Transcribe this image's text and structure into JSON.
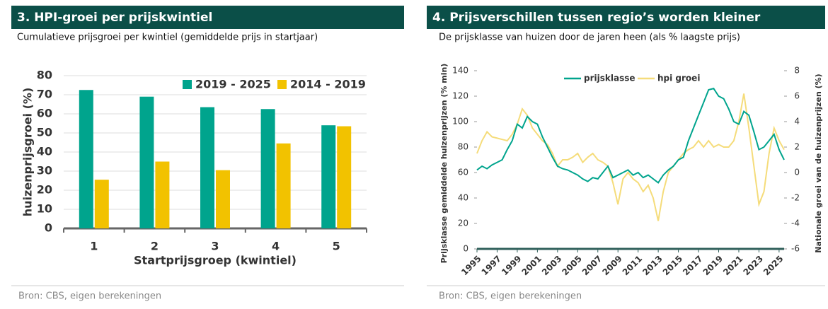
{
  "chart_data": [
    {
      "type": "bar",
      "title": "3. HPI-groei per prijskwintiel",
      "subtitle": "Cumulatieve prijsgroei per kwintiel (gemiddelde prijs in startjaar)",
      "source": "Bron: CBS, eigen berekeningen",
      "xlabel": "Startprijsgroep (kwintiel)",
      "ylabel": "huizenprijsgroei (%)",
      "categories": [
        "1",
        "2",
        "3",
        "4",
        "5"
      ],
      "series": [
        {
          "name": "2019 - 2025",
          "color": "#00a48d",
          "values": [
            72.5,
            69,
            63.5,
            62.5,
            54
          ]
        },
        {
          "name": "2014 - 2019",
          "color": "#f2c200",
          "values": [
            25.5,
            35,
            30.5,
            44.5,
            53.5
          ]
        }
      ],
      "ylim": [
        0,
        80
      ],
      "yticks": [
        0,
        10,
        20,
        30,
        40,
        50,
        60,
        70,
        80
      ],
      "grid": true,
      "legend": "top-right"
    },
    {
      "type": "line",
      "title": "4.  Prijsverschillen tussen regio’s worden kleiner",
      "subtitle": "De prijsklasse van huizen door de jaren heen (als % laagste prijs)",
      "source": "Bron: CBS, eigen berekeningen",
      "ylabel": "Prijsklasse gemiddelde huizenprijzen (% min)",
      "y2label": "Nationale groei van de huizenprijzen (%)",
      "x": [
        1995,
        1995.5,
        1996,
        1996.5,
        1997,
        1997.5,
        1998,
        1998.5,
        1999,
        1999.5,
        2000,
        2000.5,
        2001,
        2001.5,
        2002,
        2002.5,
        2003,
        2003.5,
        2004,
        2004.5,
        2005,
        2005.5,
        2006,
        2006.5,
        2007,
        2007.5,
        2008,
        2008.5,
        2009,
        2009.5,
        2010,
        2010.5,
        2011,
        2011.5,
        2012,
        2012.5,
        2013,
        2013.5,
        2014,
        2014.5,
        2015,
        2015.5,
        2016,
        2016.5,
        2017,
        2017.5,
        2018,
        2018.5,
        2019,
        2019.5,
        2020,
        2020.5,
        2021,
        2021.5,
        2022,
        2022.5,
        2023,
        2023.5,
        2024,
        2024.5,
        2025,
        2025.5
      ],
      "series": [
        {
          "name": "prijsklasse",
          "color": "#00a48d",
          "values": [
            62,
            65,
            63,
            66,
            68,
            70,
            78,
            85,
            98,
            95,
            104,
            100,
            98,
            88,
            80,
            72,
            65,
            63,
            62,
            60,
            58,
            55,
            53,
            56,
            55,
            60,
            65,
            56,
            58,
            60,
            62,
            58,
            60,
            56,
            58,
            55,
            52,
            58,
            62,
            65,
            70,
            72,
            85,
            95,
            105,
            115,
            125,
            126,
            120,
            118,
            110,
            100,
            98,
            108,
            105,
            92,
            78,
            80,
            85,
            90,
            78,
            70
          ]
        },
        {
          "name": "hpi groei",
          "color": "#f5dc7a",
          "axis": "y2",
          "values": [
            1.5,
            2.5,
            3.2,
            2.8,
            2.7,
            2.6,
            2.5,
            3.0,
            3.8,
            5.0,
            4.5,
            3.5,
            3.0,
            2.5,
            2.2,
            1.5,
            0.5,
            1.0,
            1.0,
            1.2,
            1.5,
            0.8,
            1.2,
            1.5,
            1.0,
            0.8,
            0.5,
            -0.8,
            -2.5,
            -0.5,
            0.0,
            -0.5,
            -0.8,
            -1.5,
            -1.0,
            -2.0,
            -3.8,
            -1.5,
            0.0,
            0.5,
            1.0,
            1.5,
            1.8,
            2.0,
            2.5,
            2.0,
            2.5,
            2.0,
            2.2,
            2.0,
            2.0,
            2.5,
            4.0,
            6.2,
            3.5,
            0.5,
            -2.5,
            -1.5,
            1.5,
            3.5,
            2.5,
            1.8
          ]
        }
      ],
      "xlim": [
        1995,
        2025.5
      ],
      "xticks": [
        1995,
        1997,
        1999,
        2001,
        2003,
        2005,
        2007,
        2009,
        2011,
        2013,
        2015,
        2017,
        2019,
        2021,
        2023,
        2025
      ],
      "ylim": [
        0,
        140
      ],
      "yticks": [
        0,
        20,
        40,
        60,
        80,
        100,
        120,
        140
      ],
      "y2lim": [
        -6,
        8
      ],
      "y2ticks": [
        -6,
        -4,
        -2,
        0,
        2,
        4,
        6,
        8
      ],
      "grid": false,
      "legend": "top"
    }
  ]
}
